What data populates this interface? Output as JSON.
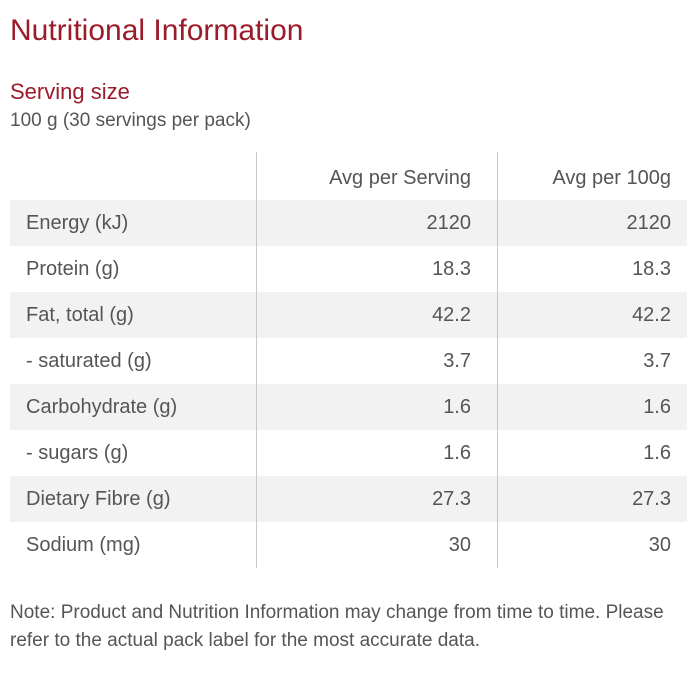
{
  "title": "Nutritional Information",
  "serving": {
    "heading": "Serving size",
    "value": "100 g (30 servings per pack)"
  },
  "table": {
    "columns": [
      "",
      "Avg per Serving",
      "Avg per 100g"
    ],
    "rows": [
      {
        "name": "Energy (kJ)",
        "per_serving": "2120",
        "per_100g": "2120"
      },
      {
        "name": "Protein (g)",
        "per_serving": "18.3",
        "per_100g": "18.3"
      },
      {
        "name": "Fat, total (g)",
        "per_serving": "42.2",
        "per_100g": "42.2"
      },
      {
        "name": "- saturated (g)",
        "per_serving": "3.7",
        "per_100g": "3.7"
      },
      {
        "name": "Carbohydrate (g)",
        "per_serving": "1.6",
        "per_100g": "1.6"
      },
      {
        "name": "- sugars (g)",
        "per_serving": "1.6",
        "per_100g": "1.6"
      },
      {
        "name": "Dietary Fibre (g)",
        "per_serving": "27.3",
        "per_100g": "27.3"
      },
      {
        "name": "Sodium (mg)",
        "per_serving": "30",
        "per_100g": "30"
      }
    ]
  },
  "note": "Note: Product and Nutrition Information may change from time to time. Please refer to the actual pack label for the most accurate data.",
  "colors": {
    "heading": "#9b1b2a",
    "text": "#555555",
    "row_shade": "#f2f2f2",
    "divider": "#c8c8c8"
  }
}
